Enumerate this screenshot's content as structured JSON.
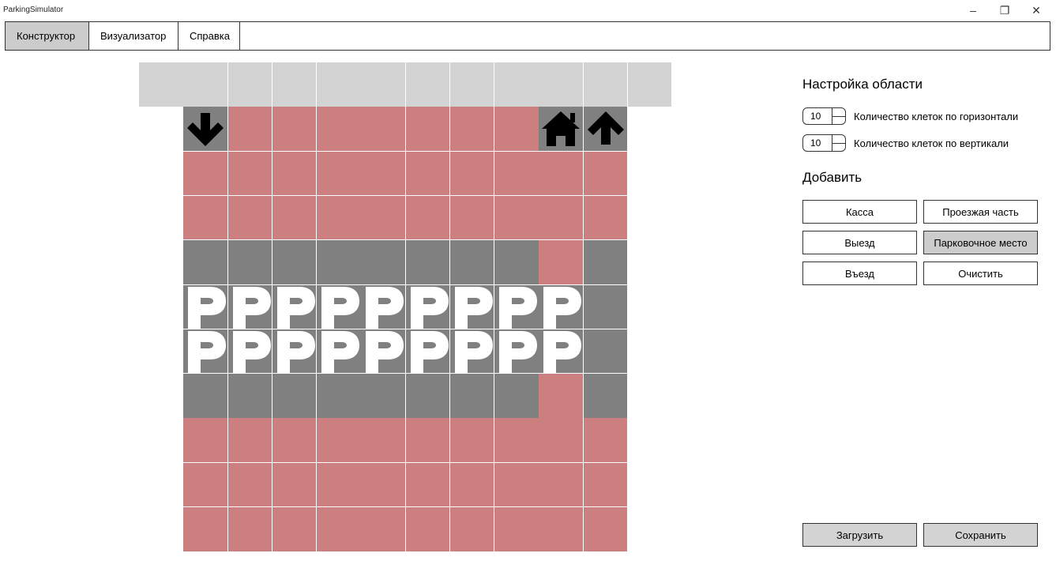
{
  "window": {
    "title": "ParkingSimulator",
    "minimize": "–",
    "restore": "❐",
    "close": "✕"
  },
  "tabs": [
    {
      "label": "Конструктор",
      "active": true
    },
    {
      "label": "Визуализатор",
      "active": false
    },
    {
      "label": "Справка",
      "active": false
    }
  ],
  "grid": {
    "columns": 12,
    "rows": 11,
    "colors": {
      "header": "#d3d3d3",
      "red": "#cb7f7e",
      "gray": "#808080"
    },
    "cells": [
      [
        "header",
        "header",
        "header",
        "header",
        "header",
        "header",
        "header",
        "header",
        "header",
        "header",
        "header",
        "header"
      ],
      [
        "empty",
        "gray:arrow-down",
        "red",
        "red",
        "red",
        "red",
        "red",
        "red",
        "red",
        "gray:house",
        "gray:arrow-up",
        "empty"
      ],
      [
        "empty",
        "red",
        "red",
        "red",
        "red",
        "red",
        "red",
        "red",
        "red",
        "red",
        "red",
        "empty"
      ],
      [
        "empty",
        "red",
        "red",
        "red",
        "red",
        "red",
        "red",
        "red",
        "red",
        "red",
        "red",
        "empty"
      ],
      [
        "empty",
        "gray",
        "gray",
        "gray",
        "gray",
        "gray",
        "gray",
        "gray",
        "gray",
        "red",
        "gray",
        "empty"
      ],
      [
        "empty",
        "gray:parking-p",
        "gray:parking-p",
        "gray:parking-p",
        "gray:parking-p",
        "gray:parking-p",
        "gray:parking-p",
        "gray:parking-p",
        "gray:parking-p",
        "gray:parking-p",
        "gray",
        "empty"
      ],
      [
        "empty",
        "gray:parking-p",
        "gray:parking-p",
        "gray:parking-p",
        "gray:parking-p",
        "gray:parking-p",
        "gray:parking-p",
        "gray:parking-p",
        "gray:parking-p",
        "gray:parking-p",
        "gray",
        "empty"
      ],
      [
        "empty",
        "gray",
        "gray",
        "gray",
        "gray",
        "gray",
        "gray",
        "gray",
        "gray",
        "red",
        "gray",
        "empty"
      ],
      [
        "empty",
        "red",
        "red",
        "red",
        "red",
        "red",
        "red",
        "red",
        "red",
        "red",
        "red",
        "empty"
      ],
      [
        "empty",
        "red",
        "red",
        "red",
        "red",
        "red",
        "red",
        "red",
        "red",
        "red",
        "red",
        "empty"
      ],
      [
        "empty",
        "red",
        "red",
        "red",
        "red",
        "red",
        "red",
        "red",
        "red",
        "red",
        "red",
        "empty"
      ]
    ]
  },
  "settings": {
    "title": "Настройка области",
    "horizontal": {
      "value": "10",
      "label": "Количество клеток по горизонтали"
    },
    "vertical": {
      "value": "10",
      "label": "Количество клеток по вертикали"
    }
  },
  "add": {
    "title": "Добавить",
    "buttons": {
      "cashier": "Касса",
      "roadway": "Проезжая часть",
      "exit": "Выезд",
      "parking_spot": "Парковочное место",
      "entry": "Въезд",
      "clear": "Очистить"
    },
    "pressed": "parking_spot"
  },
  "footer": {
    "load": "Загрузить",
    "save": "Сохранить"
  }
}
